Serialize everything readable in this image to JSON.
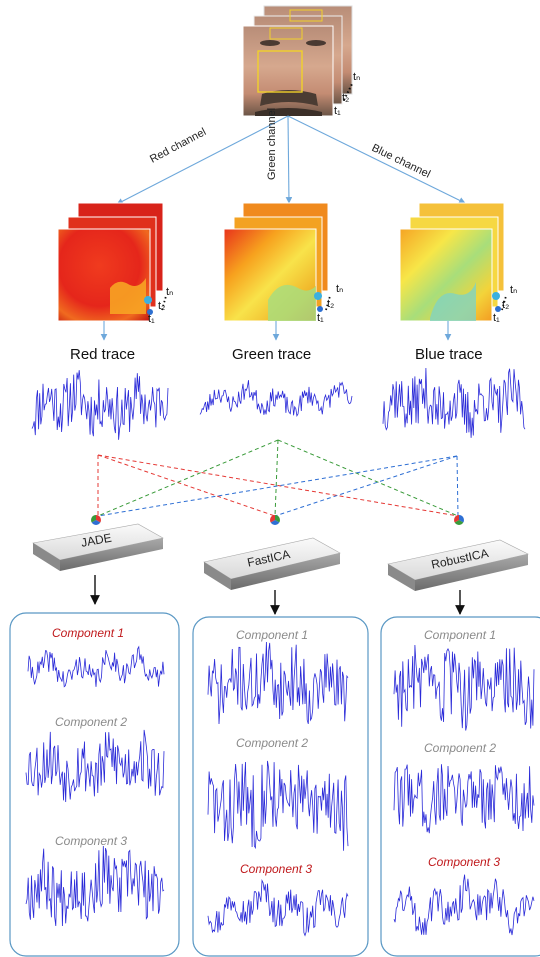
{
  "channels": [
    "Red channel",
    "Green channel",
    "Blue channel"
  ],
  "traces": [
    "Red trace",
    "Green trace",
    "Blue trace"
  ],
  "methods": [
    "JADE",
    "FastICA",
    "RobustICA"
  ],
  "frame_labels": [
    "t₁",
    "t₂",
    "tₙ"
  ],
  "components": [
    {
      "label": "Component 1",
      "highlight": [
        true,
        false,
        false
      ]
    },
    {
      "label": "Component 2",
      "highlight": [
        false,
        false,
        false
      ]
    },
    {
      "label": "Component 3",
      "highlight": [
        false,
        true,
        true
      ]
    }
  ],
  "colors": {
    "red": "#e53935",
    "green": "#3a9b3a",
    "blue": "#2e6fd4",
    "signal": "#2a2ad8",
    "panel_border": "#5a98c4",
    "arrow": "#6ea8db",
    "highlight": "#c0191c",
    "muted": "#8a8a8a"
  }
}
